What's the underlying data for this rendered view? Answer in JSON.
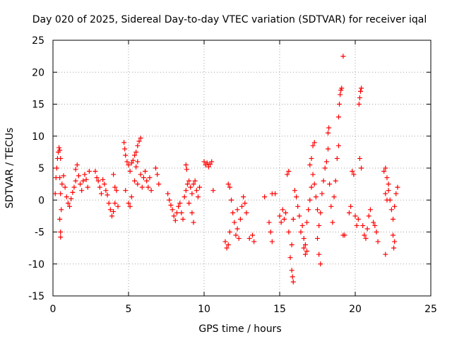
{
  "chart_data": {
    "type": "scatter",
    "title": "Day 020 of 2025, Sidereal Day-to-day VTEC variation (SDTVAR) for receiver iqal",
    "xlabel": "GPS time / hours",
    "ylabel": "SDTVAR / TECUs",
    "xlim": [
      0,
      25
    ],
    "ylim": [
      -15,
      25
    ],
    "xticks": [
      0,
      5,
      10,
      15,
      20,
      25
    ],
    "yticks": [
      -15,
      -10,
      -5,
      0,
      5,
      10,
      15,
      20,
      25
    ],
    "grid": true,
    "marker": "+",
    "color": "#ff0000",
    "series": [
      {
        "name": "SDTVAR",
        "points": [
          [
            0.15,
            1.0
          ],
          [
            0.2,
            3.5
          ],
          [
            0.25,
            5.0
          ],
          [
            0.3,
            6.5
          ],
          [
            0.35,
            7.5
          ],
          [
            0.4,
            8.2
          ],
          [
            0.45,
            7.8
          ],
          [
            0.5,
            6.5
          ],
          [
            0.45,
            3.5
          ],
          [
            0.5,
            1.0
          ],
          [
            0.55,
            -1.5
          ],
          [
            0.45,
            -3.0
          ],
          [
            0.5,
            -5.0
          ],
          [
            0.5,
            -5.8
          ],
          [
            0.6,
            2.5
          ],
          [
            0.7,
            3.8
          ],
          [
            0.8,
            2.0
          ],
          [
            0.9,
            0.5
          ],
          [
            1.0,
            -0.5
          ],
          [
            1.1,
            -1.0
          ],
          [
            1.2,
            0.2
          ],
          [
            1.3,
            1.2
          ],
          [
            1.4,
            2.0
          ],
          [
            1.5,
            3.0
          ],
          [
            1.5,
            4.8
          ],
          [
            1.6,
            5.5
          ],
          [
            1.7,
            3.8
          ],
          [
            1.8,
            2.5
          ],
          [
            1.9,
            1.5
          ],
          [
            2.0,
            3.0
          ],
          [
            2.1,
            4.0
          ],
          [
            2.2,
            3.2
          ],
          [
            2.3,
            2.0
          ],
          [
            2.4,
            4.5
          ],
          [
            2.8,
            4.5
          ],
          [
            2.9,
            3.5
          ],
          [
            3.0,
            3.0
          ],
          [
            3.1,
            2.0
          ],
          [
            3.2,
            1.0
          ],
          [
            3.3,
            3.2
          ],
          [
            3.4,
            2.5
          ],
          [
            3.5,
            1.5
          ],
          [
            3.6,
            0.8
          ],
          [
            3.7,
            -0.5
          ],
          [
            3.8,
            -1.5
          ],
          [
            3.9,
            -2.5
          ],
          [
            4.0,
            -1.8
          ],
          [
            4.1,
            -0.5
          ],
          [
            4.2,
            1.5
          ],
          [
            4.3,
            -1.0
          ],
          [
            4.0,
            4.0
          ],
          [
            4.1,
            2.0
          ],
          [
            4.7,
            9.0
          ],
          [
            4.75,
            8.0
          ],
          [
            4.8,
            7.0
          ],
          [
            4.9,
            6.0
          ],
          [
            5.0,
            5.5
          ],
          [
            5.1,
            4.5
          ],
          [
            5.2,
            5.8
          ],
          [
            5.3,
            6.2
          ],
          [
            5.4,
            7.0
          ],
          [
            5.5,
            7.5
          ],
          [
            5.6,
            8.5
          ],
          [
            5.7,
            9.2
          ],
          [
            5.8,
            9.7
          ],
          [
            5.6,
            6.0
          ],
          [
            5.5,
            5.2
          ],
          [
            4.8,
            1.5
          ],
          [
            5.0,
            -0.5
          ],
          [
            5.1,
            -1.0
          ],
          [
            5.2,
            0.5
          ],
          [
            5.4,
            3.0
          ],
          [
            5.6,
            2.5
          ],
          [
            5.8,
            4.0
          ],
          [
            5.9,
            2.0
          ],
          [
            6.0,
            3.5
          ],
          [
            6.1,
            4.5
          ],
          [
            6.2,
            3.0
          ],
          [
            6.3,
            2.0
          ],
          [
            6.4,
            3.5
          ],
          [
            6.5,
            1.5
          ],
          [
            6.8,
            5.0
          ],
          [
            6.9,
            4.0
          ],
          [
            7.0,
            2.5
          ],
          [
            7.6,
            1.0
          ],
          [
            7.7,
            0.0
          ],
          [
            7.8,
            -0.8
          ],
          [
            7.9,
            -1.5
          ],
          [
            8.0,
            -2.5
          ],
          [
            8.1,
            -3.2
          ],
          [
            8.2,
            -2.0
          ],
          [
            8.3,
            -1.0
          ],
          [
            8.4,
            -0.5
          ],
          [
            8.5,
            -2.0
          ],
          [
            8.6,
            -3.0
          ],
          [
            8.7,
            0.5
          ],
          [
            8.8,
            1.5
          ],
          [
            8.9,
            2.5
          ],
          [
            9.0,
            3.0
          ],
          [
            9.1,
            2.0
          ],
          [
            9.2,
            1.0
          ],
          [
            9.3,
            2.5
          ],
          [
            9.4,
            3.0
          ],
          [
            9.5,
            1.5
          ],
          [
            8.8,
            5.5
          ],
          [
            8.85,
            4.8
          ],
          [
            9.0,
            -0.5
          ],
          [
            9.2,
            -2.0
          ],
          [
            9.3,
            -3.5
          ],
          [
            9.6,
            0.5
          ],
          [
            9.7,
            2.0
          ],
          [
            10.0,
            6.0
          ],
          [
            10.1,
            5.5
          ],
          [
            10.2,
            5.8
          ],
          [
            10.3,
            5.2
          ],
          [
            10.4,
            5.6
          ],
          [
            10.5,
            6.0
          ],
          [
            10.6,
            1.5
          ],
          [
            11.4,
            -6.5
          ],
          [
            11.5,
            -7.5
          ],
          [
            11.6,
            -7.0
          ],
          [
            11.7,
            -5.0
          ],
          [
            11.6,
            2.5
          ],
          [
            11.7,
            2.0
          ],
          [
            11.8,
            0.0
          ],
          [
            11.9,
            -2.0
          ],
          [
            12.0,
            -3.5
          ],
          [
            12.1,
            -5.5
          ],
          [
            12.2,
            -4.5
          ],
          [
            12.3,
            -6.0
          ],
          [
            12.4,
            -3.0
          ],
          [
            12.5,
            -1.0
          ],
          [
            12.6,
            0.5
          ],
          [
            12.7,
            -0.5
          ],
          [
            12.8,
            -2.0
          ],
          [
            12.2,
            -1.5
          ],
          [
            13.2,
            -5.5
          ],
          [
            13.3,
            -6.5
          ],
          [
            13.0,
            -6.0
          ],
          [
            14.0,
            0.5
          ],
          [
            14.3,
            -3.5
          ],
          [
            14.4,
            -5.0
          ],
          [
            14.5,
            -6.5
          ],
          [
            14.5,
            1.0
          ],
          [
            14.7,
            1.0
          ],
          [
            15.0,
            -2.5
          ],
          [
            15.1,
            -3.5
          ],
          [
            15.2,
            -1.5
          ],
          [
            15.3,
            -3.0
          ],
          [
            15.4,
            -2.0
          ],
          [
            15.5,
            4.0
          ],
          [
            15.6,
            4.5
          ],
          [
            15.6,
            -5.0
          ],
          [
            15.7,
            -9.0
          ],
          [
            15.8,
            -11.0
          ],
          [
            15.85,
            -12.0
          ],
          [
            15.9,
            -12.8
          ],
          [
            15.8,
            -7.0
          ],
          [
            15.9,
            -3.0
          ],
          [
            16.0,
            1.5
          ],
          [
            16.1,
            0.5
          ],
          [
            16.2,
            -1.0
          ],
          [
            16.3,
            -2.5
          ],
          [
            16.4,
            -5.0
          ],
          [
            16.5,
            -4.0
          ],
          [
            16.6,
            -6.0
          ],
          [
            16.7,
            -7.0
          ],
          [
            16.8,
            -8.0
          ],
          [
            16.6,
            -7.5
          ],
          [
            16.7,
            -8.5
          ],
          [
            16.8,
            -3.5
          ],
          [
            16.9,
            -1.5
          ],
          [
            17.0,
            0.0
          ],
          [
            17.1,
            2.0
          ],
          [
            17.0,
            5.5
          ],
          [
            17.1,
            6.5
          ],
          [
            17.2,
            8.5
          ],
          [
            17.3,
            9.0
          ],
          [
            17.2,
            4.0
          ],
          [
            17.3,
            2.5
          ],
          [
            17.4,
            0.5
          ],
          [
            17.5,
            -1.5
          ],
          [
            17.6,
            -4.0
          ],
          [
            17.5,
            -6.0
          ],
          [
            17.6,
            -8.5
          ],
          [
            17.7,
            -10.0
          ],
          [
            17.7,
            -2.0
          ],
          [
            17.8,
            1.0
          ],
          [
            17.9,
            3.0
          ],
          [
            18.0,
            5.0
          ],
          [
            18.1,
            6.0
          ],
          [
            18.2,
            8.0
          ],
          [
            18.2,
            10.5
          ],
          [
            18.25,
            11.3
          ],
          [
            18.3,
            2.5
          ],
          [
            18.4,
            -1.0
          ],
          [
            18.5,
            -3.5
          ],
          [
            18.6,
            0.5
          ],
          [
            18.7,
            3.0
          ],
          [
            18.8,
            6.5
          ],
          [
            18.9,
            8.5
          ],
          [
            18.9,
            13.0
          ],
          [
            18.95,
            15.0
          ],
          [
            19.0,
            16.5
          ],
          [
            19.05,
            17.2
          ],
          [
            19.1,
            17.5
          ],
          [
            19.2,
            22.5
          ],
          [
            19.2,
            -5.5
          ],
          [
            19.3,
            -5.5
          ],
          [
            19.6,
            -2.0
          ],
          [
            19.7,
            -1.0
          ],
          [
            19.8,
            4.5
          ],
          [
            19.9,
            4.0
          ],
          [
            20.0,
            -2.5
          ],
          [
            20.1,
            -4.0
          ],
          [
            20.2,
            -3.0
          ],
          [
            20.25,
            15.0
          ],
          [
            20.3,
            16.0
          ],
          [
            20.35,
            17.0
          ],
          [
            20.4,
            17.5
          ],
          [
            20.3,
            6.5
          ],
          [
            20.4,
            5.0
          ],
          [
            20.5,
            -4.0
          ],
          [
            20.6,
            -5.5
          ],
          [
            20.7,
            -6.0
          ],
          [
            20.8,
            -4.5
          ],
          [
            20.9,
            -2.5
          ],
          [
            21.0,
            -1.5
          ],
          [
            21.2,
            -3.5
          ],
          [
            21.3,
            -4.0
          ],
          [
            21.4,
            -5.0
          ],
          [
            21.5,
            -6.5
          ],
          [
            21.9,
            4.5
          ],
          [
            22.0,
            5.0
          ],
          [
            22.1,
            3.5
          ],
          [
            22.2,
            1.5
          ],
          [
            22.3,
            0.0
          ],
          [
            22.4,
            -1.5
          ],
          [
            22.5,
            -3.0
          ],
          [
            22.6,
            -1.0
          ],
          [
            22.7,
            1.0
          ],
          [
            22.8,
            2.0
          ],
          [
            22.0,
            -8.5
          ],
          [
            22.5,
            -5.5
          ],
          [
            22.6,
            -6.5
          ],
          [
            22.55,
            -7.5
          ],
          [
            22.0,
            1.0
          ],
          [
            22.1,
            0.0
          ],
          [
            22.2,
            2.5
          ]
        ]
      }
    ]
  }
}
